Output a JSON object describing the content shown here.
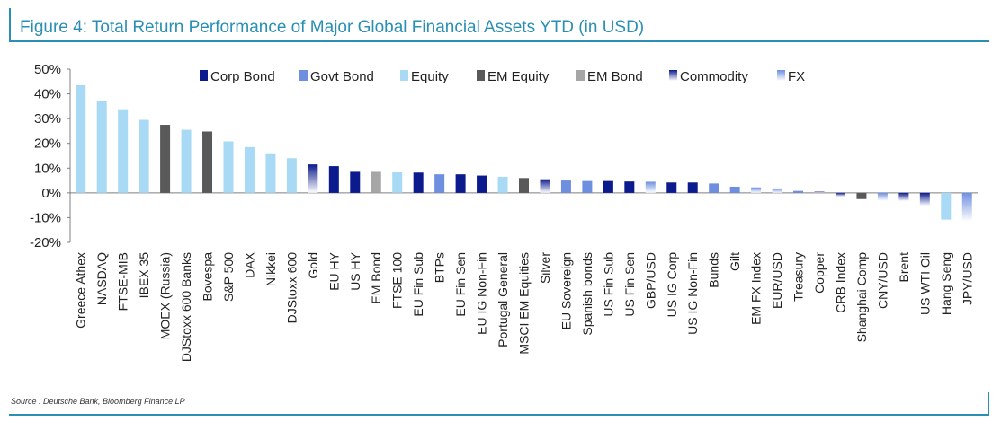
{
  "figure": {
    "title": "Figure 4: Total Return Performance of Major Global Financial Assets YTD (in USD)",
    "source": "Source : Deutsche Bank, Bloomberg Finance LP"
  },
  "colors": {
    "Corp Bond": "#0b1a8c",
    "Govt Bond": "#6e8fe0",
    "Equity": "#a8daf5",
    "EM Equity": "#595959",
    "EM Bond": "#a6a6a6",
    "Commodity": "#0b1a8c",
    "FX": "#6e8fe0"
  },
  "chart_data": {
    "type": "bar",
    "title": "Figure 4: Total Return Performance of Major Global Financial Assets YTD (in USD)",
    "xlabel": "",
    "ylabel": "",
    "ylim": [
      -20,
      50
    ],
    "yticks": [
      -20,
      -10,
      0,
      10,
      20,
      30,
      40,
      50
    ],
    "yticks_labels": [
      "-20%",
      "-10%",
      "0%",
      "10%",
      "20%",
      "30%",
      "40%",
      "50%"
    ],
    "grid": false,
    "legend_position": "top",
    "legend": [
      "Corp Bond",
      "Govt Bond",
      "Equity",
      "EM Equity",
      "EM Bond",
      "Commodity",
      "FX"
    ],
    "categories": [
      "Greece Athex",
      "NASDAQ",
      "FTSE-MIB",
      "IBEX 35",
      "MOEX (Russia)",
      "DJStoxx 600 Banks",
      "Bovespa",
      "S&P 500",
      "DAX",
      "Nikkei",
      "DJStoxx 600",
      "Gold",
      "EU HY",
      "US HY",
      "EM Bond",
      "FTSE 100",
      "EU Fin Sub",
      "BTPs",
      "EU Fin Sen",
      "EU IG Non-Fin",
      "Portugal General",
      "MSCI EM Equities",
      "Silver",
      "EU Sovereign",
      "Spanish bonds",
      "US Fin Sub",
      "US Fin Sen",
      "GBP/USD",
      "US IG Corp",
      "US IG Non-Fin",
      "Bunds",
      "Gilt",
      "EM FX Index",
      "EUR/USD",
      "Treasury",
      "Copper",
      "CRB Index",
      "Shanghai Comp",
      "CNY/USD",
      "Brent",
      "US WTI Oil",
      "Hang Seng",
      "JPY/USD"
    ],
    "values": [
      43.5,
      37.0,
      33.8,
      29.5,
      27.5,
      25.5,
      24.8,
      20.8,
      18.5,
      16.0,
      14.0,
      11.5,
      10.8,
      8.5,
      8.5,
      8.3,
      8.2,
      7.5,
      7.5,
      7.0,
      6.5,
      6.0,
      5.5,
      5.0,
      4.8,
      4.8,
      4.6,
      4.5,
      4.2,
      4.2,
      3.8,
      2.5,
      2.2,
      1.8,
      0.8,
      0.5,
      -1.5,
      -2.5,
      -3.2,
      -3.3,
      -5.2,
      -10.8,
      -11.5
    ],
    "asset_class": [
      "Equity",
      "Equity",
      "Equity",
      "Equity",
      "EM Equity",
      "Equity",
      "EM Equity",
      "Equity",
      "Equity",
      "Equity",
      "Equity",
      "Commodity",
      "Corp Bond",
      "Corp Bond",
      "EM Bond",
      "Equity",
      "Corp Bond",
      "Govt Bond",
      "Corp Bond",
      "Corp Bond",
      "Equity",
      "EM Equity",
      "Commodity",
      "Govt Bond",
      "Govt Bond",
      "Corp Bond",
      "Corp Bond",
      "FX",
      "Corp Bond",
      "Corp Bond",
      "Govt Bond",
      "Govt Bond",
      "FX",
      "FX",
      "Govt Bond",
      "Commodity",
      "Commodity",
      "EM Equity",
      "FX",
      "Commodity",
      "Commodity",
      "Equity",
      "FX"
    ]
  }
}
